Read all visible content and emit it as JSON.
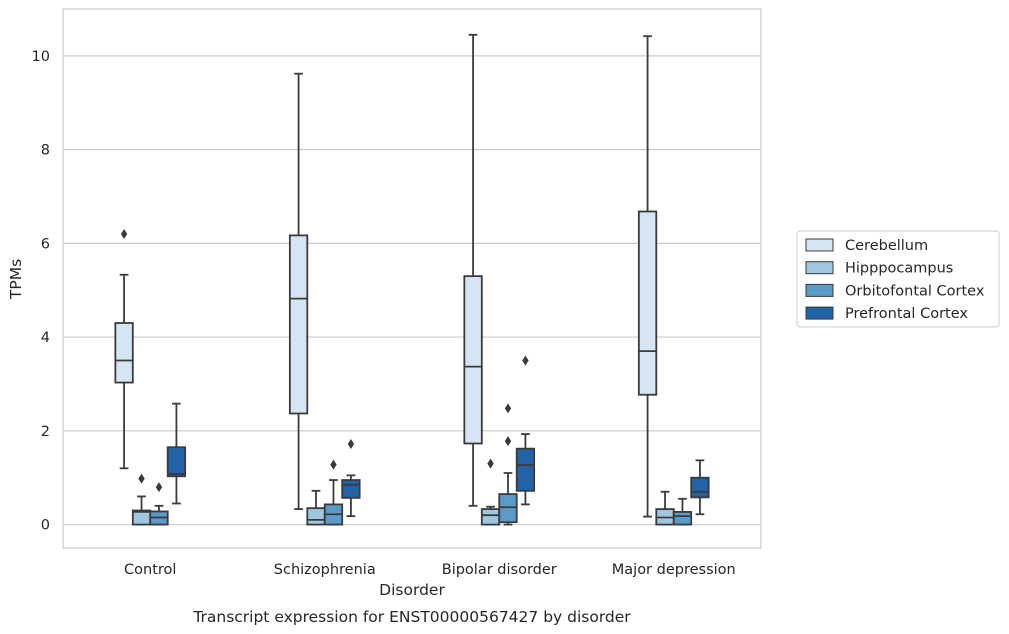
{
  "chart_data": {
    "type": "box",
    "xlabel": "Disorder",
    "ylabel": "TPMs",
    "caption": "Transcript expression for ENST00000567427 by disorder",
    "ylim": [
      -0.5,
      11
    ],
    "yticks": [
      0,
      2,
      4,
      6,
      8,
      10
    ],
    "grid": "horizontal",
    "legend_position": "right",
    "categories": [
      "Control",
      "Schizophrenia",
      "Bipolar disorder",
      "Major depression"
    ],
    "series": [
      {
        "name": "Cerebellum",
        "color": "#d6e5f4",
        "boxes": [
          {
            "whisker_low": 1.2,
            "q1": 3.03,
            "median": 3.5,
            "q3": 4.3,
            "whisker_high": 5.33,
            "outliers": [
              6.2
            ]
          },
          {
            "whisker_low": 0.33,
            "q1": 2.37,
            "median": 4.82,
            "q3": 6.17,
            "whisker_high": 9.62,
            "outliers": []
          },
          {
            "whisker_low": 0.4,
            "q1": 1.73,
            "median": 3.37,
            "q3": 5.3,
            "whisker_high": 10.45,
            "outliers": []
          },
          {
            "whisker_low": 0.17,
            "q1": 2.77,
            "median": 3.7,
            "q3": 6.68,
            "whisker_high": 10.42,
            "outliers": []
          }
        ]
      },
      {
        "name": "Hipppocampus",
        "color": "#a0c7e1",
        "boxes": [
          {
            "whisker_low": 0.0,
            "q1": 0.0,
            "median": 0.27,
            "q3": 0.3,
            "whisker_high": 0.6,
            "outliers": [
              0.98
            ]
          },
          {
            "whisker_low": 0.0,
            "q1": 0.0,
            "median": 0.1,
            "q3": 0.35,
            "whisker_high": 0.72,
            "outliers": []
          },
          {
            "whisker_low": 0.0,
            "q1": 0.0,
            "median": 0.2,
            "q3": 0.33,
            "whisker_high": 0.38,
            "outliers": [
              1.3
            ]
          },
          {
            "whisker_low": 0.0,
            "q1": 0.0,
            "median": 0.15,
            "q3": 0.33,
            "whisker_high": 0.7,
            "outliers": []
          }
        ]
      },
      {
        "name": "Orbitofontal Cortex",
        "color": "#5b9bc9",
        "boxes": [
          {
            "whisker_low": 0.0,
            "q1": 0.0,
            "median": 0.15,
            "q3": 0.28,
            "whisker_high": 0.4,
            "outliers": [
              0.8
            ]
          },
          {
            "whisker_low": 0.0,
            "q1": 0.0,
            "median": 0.22,
            "q3": 0.43,
            "whisker_high": 0.95,
            "outliers": [
              1.28
            ]
          },
          {
            "whisker_low": 0.0,
            "q1": 0.05,
            "median": 0.37,
            "q3": 0.65,
            "whisker_high": 1.1,
            "outliers": [
              1.78,
              2.48
            ]
          },
          {
            "whisker_low": 0.0,
            "q1": 0.0,
            "median": 0.18,
            "q3": 0.27,
            "whisker_high": 0.55,
            "outliers": []
          }
        ]
      },
      {
        "name": "Prefrontal Cortex",
        "color": "#2163a6",
        "boxes": [
          {
            "whisker_low": 0.45,
            "q1": 1.03,
            "median": 1.08,
            "q3": 1.65,
            "whisker_high": 2.58,
            "outliers": []
          },
          {
            "whisker_low": 0.18,
            "q1": 0.57,
            "median": 0.85,
            "q3": 0.95,
            "whisker_high": 1.05,
            "outliers": [
              1.72
            ]
          },
          {
            "whisker_low": 0.43,
            "q1": 0.72,
            "median": 1.27,
            "q3": 1.62,
            "whisker_high": 1.93,
            "outliers": [
              3.5
            ]
          },
          {
            "whisker_low": 0.22,
            "q1": 0.58,
            "median": 0.7,
            "q3": 1.0,
            "whisker_high": 1.37,
            "outliers": []
          }
        ]
      }
    ]
  }
}
